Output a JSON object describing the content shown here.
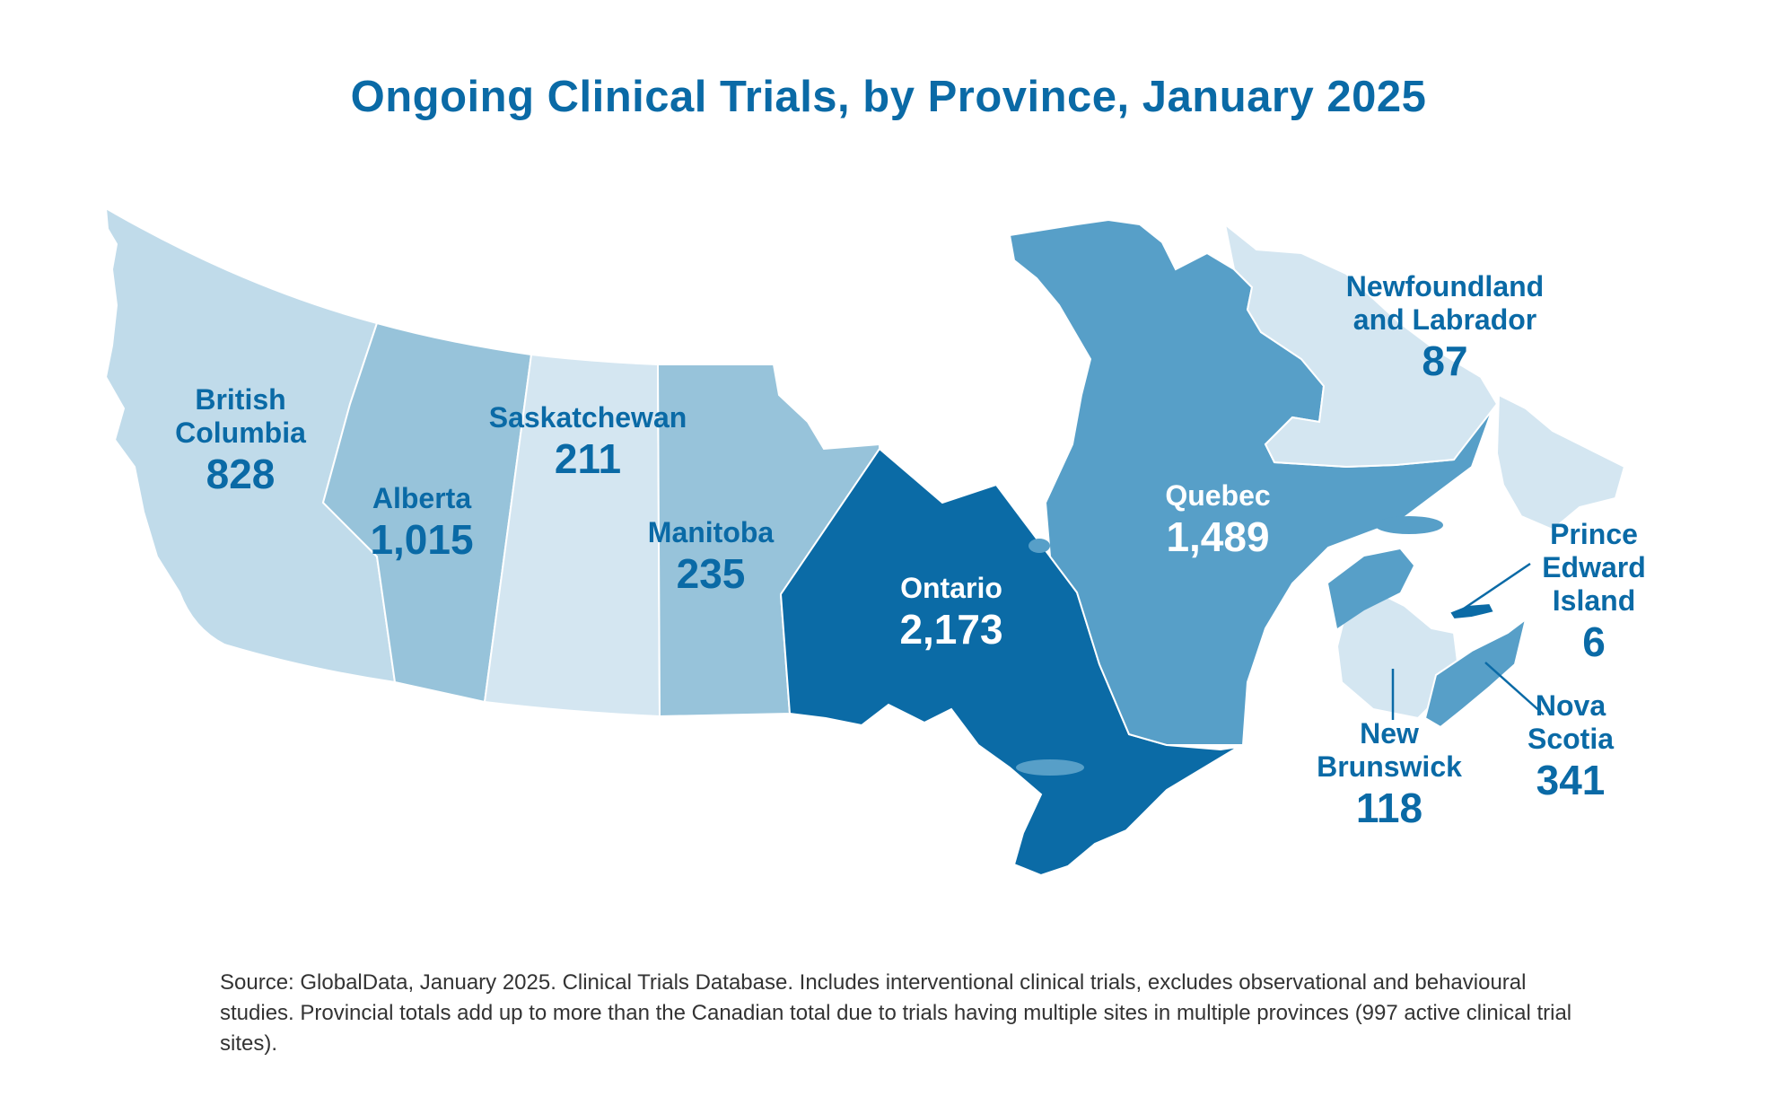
{
  "title": "Ongoing Clinical Trials, by Province, January 2025",
  "source_note": "Source: GlobalData, January 2025. Clinical Trials Database. Includes interventional clinical trials, excludes observational and behavioural studies. Provincial totals add up to more than the Canadian total due to trials having multiple sites in multiple provinces (997 active clinical trial sites).",
  "colors": {
    "lightest": "#d4e6f1",
    "light": "#c0dbea",
    "medium": "#97c3da",
    "dark": "#579fc8",
    "darkest": "#0b6ba6",
    "label_dark": "#0a6aa6",
    "label_on_dark": "#ffffff"
  },
  "provinces": [
    {
      "name_lines": [
        "British",
        "Columbia"
      ],
      "value": "828",
      "trials": 828
    },
    {
      "name_lines": [
        "Alberta"
      ],
      "value": "1,015",
      "trials": 1015
    },
    {
      "name_lines": [
        "Saskatchewan"
      ],
      "value": "211",
      "trials": 211
    },
    {
      "name_lines": [
        "Manitoba"
      ],
      "value": "235",
      "trials": 235
    },
    {
      "name_lines": [
        "Ontario"
      ],
      "value": "2,173",
      "trials": 2173
    },
    {
      "name_lines": [
        "Quebec"
      ],
      "value": "1,489",
      "trials": 1489
    },
    {
      "name_lines": [
        "Newfoundland",
        "and Labrador"
      ],
      "value": "87",
      "trials": 87
    },
    {
      "name_lines": [
        "New",
        "Brunswick"
      ],
      "value": "118",
      "trials": 118
    },
    {
      "name_lines": [
        "Nova",
        "Scotia"
      ],
      "value": "341",
      "trials": 341
    },
    {
      "name_lines": [
        "Prince",
        "Edward",
        "Island"
      ],
      "value": "6",
      "trials": 6
    }
  ]
}
